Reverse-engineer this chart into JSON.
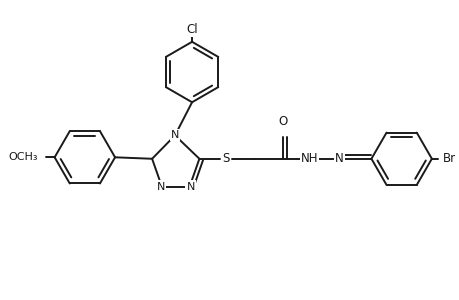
{
  "bg_color": "#ffffff",
  "line_color": "#1a1a1a",
  "line_width": 1.4,
  "font_size": 8.5,
  "figsize": [
    4.6,
    3.0
  ],
  "dpi": 100,
  "xlim": [
    0,
    9.2
  ],
  "ylim": [
    0,
    6.0
  ]
}
